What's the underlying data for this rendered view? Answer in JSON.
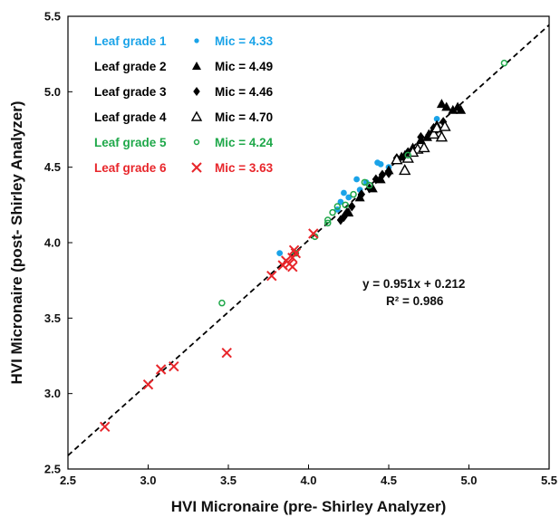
{
  "chart_data": {
    "type": "scatter",
    "xlabel": "HVI Micronaire (pre- Shirley Analyzer)",
    "ylabel": "HVI Micronaire (post- Shirley Analyzer)",
    "xlim": [
      2.5,
      5.5
    ],
    "ylim": [
      2.5,
      5.5
    ],
    "x_ticks": [
      "2.5",
      "3.0",
      "3.5",
      "4.0",
      "4.5",
      "5.0",
      "5.5"
    ],
    "y_ticks": [
      "2.5",
      "3.0",
      "3.5",
      "4.0",
      "4.5",
      "5.0",
      "5.5"
    ],
    "grid": false,
    "legend_placement": "top-left",
    "trendline": {
      "style": "dashed",
      "color": "#000000",
      "slope": 0.951,
      "intercept": 0.212
    },
    "annotations": {
      "equation": "y = 0.951x + 0.212",
      "r_squared": "R² = 0.986"
    },
    "series": [
      {
        "label": "Leaf grade 1",
        "mic": "Mic = 4.33",
        "marker": "filled-circle",
        "color": "#1aa3e8",
        "points": [
          [
            3.82,
            3.93
          ],
          [
            4.2,
            4.27
          ],
          [
            4.22,
            4.33
          ],
          [
            4.25,
            4.3
          ],
          [
            4.3,
            4.42
          ],
          [
            4.36,
            4.4
          ],
          [
            4.43,
            4.53
          ],
          [
            4.45,
            4.52
          ],
          [
            4.5,
            4.5
          ],
          [
            4.8,
            4.82
          ],
          [
            4.62,
            4.6
          ],
          [
            4.32,
            4.35
          ],
          [
            4.18,
            4.22
          ]
        ]
      },
      {
        "label": "Leaf grade 2",
        "mic": "Mic = 4.49",
        "marker": "filled-triangle",
        "color": "#000000",
        "points": [
          [
            4.25,
            4.2
          ],
          [
            4.32,
            4.3
          ],
          [
            4.4,
            4.36
          ],
          [
            4.45,
            4.42
          ],
          [
            4.5,
            4.48
          ],
          [
            4.55,
            4.55
          ],
          [
            4.6,
            4.58
          ],
          [
            4.65,
            4.63
          ],
          [
            4.7,
            4.68
          ],
          [
            4.75,
            4.72
          ],
          [
            4.78,
            4.75
          ],
          [
            4.8,
            4.78
          ],
          [
            4.83,
            4.92
          ],
          [
            4.86,
            4.9
          ],
          [
            4.9,
            4.88
          ],
          [
            4.93,
            4.9
          ],
          [
            4.95,
            4.88
          ],
          [
            4.58,
            4.57
          ],
          [
            4.74,
            4.7
          ]
        ]
      },
      {
        "label": "Leaf grade 3",
        "mic": "Mic = 4.46",
        "marker": "filled-diamond",
        "color": "#000000",
        "points": [
          [
            4.22,
            4.17
          ],
          [
            4.24,
            4.2
          ],
          [
            4.27,
            4.24
          ],
          [
            4.33,
            4.32
          ],
          [
            4.38,
            4.36
          ],
          [
            4.42,
            4.42
          ],
          [
            4.46,
            4.45
          ],
          [
            4.5,
            4.46
          ],
          [
            4.55,
            4.56
          ],
          [
            4.62,
            4.6
          ],
          [
            4.7,
            4.7
          ],
          [
            4.78,
            4.76
          ],
          [
            4.84,
            4.8
          ],
          [
            4.2,
            4.15
          ]
        ]
      },
      {
        "label": "Leaf grade 4",
        "mic": "Mic = 4.70",
        "marker": "open-triangle",
        "color": "#000000",
        "points": [
          [
            4.6,
            4.48
          ],
          [
            4.62,
            4.56
          ],
          [
            4.68,
            4.62
          ],
          [
            4.72,
            4.63
          ],
          [
            4.78,
            4.72
          ],
          [
            4.8,
            4.76
          ],
          [
            4.85,
            4.77
          ],
          [
            4.83,
            4.7
          ],
          [
            4.55,
            4.55
          ],
          [
            4.65,
            4.6
          ]
        ]
      },
      {
        "label": "Leaf grade 5",
        "mic": "Mic = 4.24",
        "marker": "open-circle",
        "color": "#1fa84a",
        "points": [
          [
            3.46,
            3.6
          ],
          [
            4.04,
            4.04
          ],
          [
            4.12,
            4.15
          ],
          [
            4.15,
            4.2
          ],
          [
            4.18,
            4.24
          ],
          [
            4.23,
            4.25
          ],
          [
            4.28,
            4.32
          ],
          [
            4.35,
            4.4
          ],
          [
            4.38,
            4.38
          ],
          [
            4.62,
            4.58
          ],
          [
            5.22,
            5.19
          ],
          [
            4.12,
            4.13
          ],
          [
            3.92,
            3.93
          ]
        ]
      },
      {
        "label": "Leaf grade 6",
        "mic": "Mic = 3.63",
        "marker": "x",
        "color": "#e8262b",
        "points": [
          [
            2.73,
            2.78
          ],
          [
            3.0,
            3.06
          ],
          [
            3.08,
            3.16
          ],
          [
            3.16,
            3.18
          ],
          [
            3.49,
            3.27
          ],
          [
            3.77,
            3.78
          ],
          [
            3.84,
            3.85
          ],
          [
            3.86,
            3.88
          ],
          [
            3.88,
            3.86
          ],
          [
            3.9,
            3.84
          ],
          [
            3.9,
            3.9
          ],
          [
            3.91,
            3.95
          ],
          [
            3.92,
            3.93
          ],
          [
            4.03,
            4.06
          ]
        ]
      }
    ]
  }
}
